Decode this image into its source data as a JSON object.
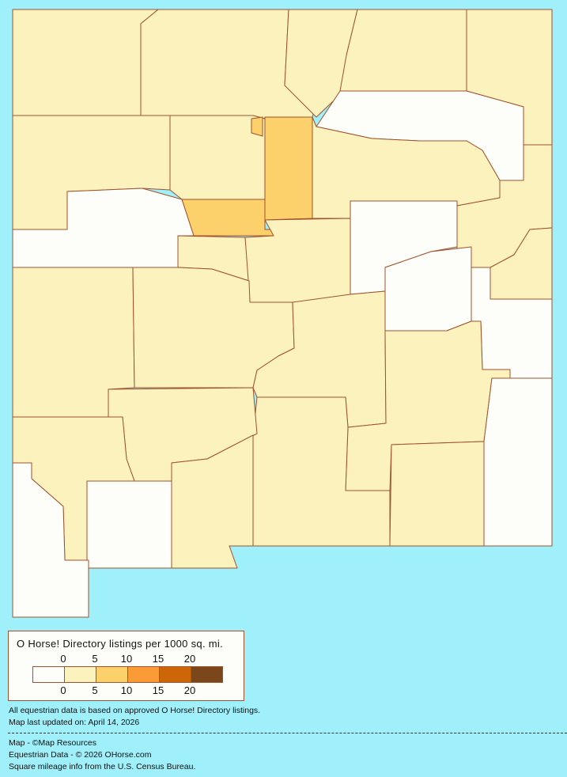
{
  "legend": {
    "title": "O Horse! Directory listings per 1000 sq. mi.",
    "ticks": [
      "0",
      "5",
      "10",
      "15",
      "20"
    ],
    "colors": [
      "#fdfdf9",
      "#fbf2bd",
      "#fcd06b",
      "#fb9b35",
      "#cc6607",
      "#7b4619"
    ]
  },
  "notes": {
    "line1": "All equestrian data is based on approved O Horse! Directory listings.",
    "line2": "Map last updated on: April 14, 2026"
  },
  "credits": {
    "map": "Map - ©Map Resources",
    "data": "Equestrian Data - © 2026 OHorse.com",
    "census": "Square mileage info from the U.S. Census Bureau."
  },
  "colors": {
    "water": "#9ff0fb",
    "border": "#a0522d"
  }
}
